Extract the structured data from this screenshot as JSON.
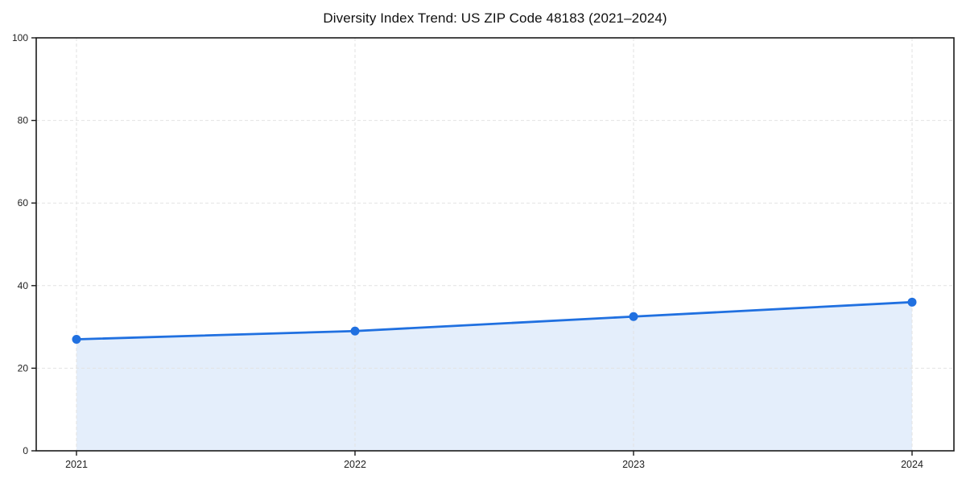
{
  "chart_data": {
    "type": "line",
    "title": "Diversity Index Trend: US ZIP Code 48183 (2021–2024)",
    "x": [
      2021,
      2022,
      2023,
      2024
    ],
    "xtick_labels": [
      "2021",
      "2022",
      "2023",
      "2024"
    ],
    "series": [
      {
        "name": "Diversity Index",
        "values": [
          27,
          29,
          32.5,
          36
        ]
      }
    ],
    "xlabel": "",
    "ylabel": "",
    "ylim": [
      0,
      100
    ],
    "yticks": [
      0,
      20,
      40,
      60,
      80,
      100
    ],
    "grid": "dashed",
    "legend": "none",
    "area_fill": true,
    "marker": "circle",
    "colors": {
      "line": "#2070e0",
      "marker": "#2070e0",
      "fill": "#e4eefb",
      "grid": "#e2e2e2",
      "spine": "#1a1a1a",
      "text": "#222222"
    }
  }
}
